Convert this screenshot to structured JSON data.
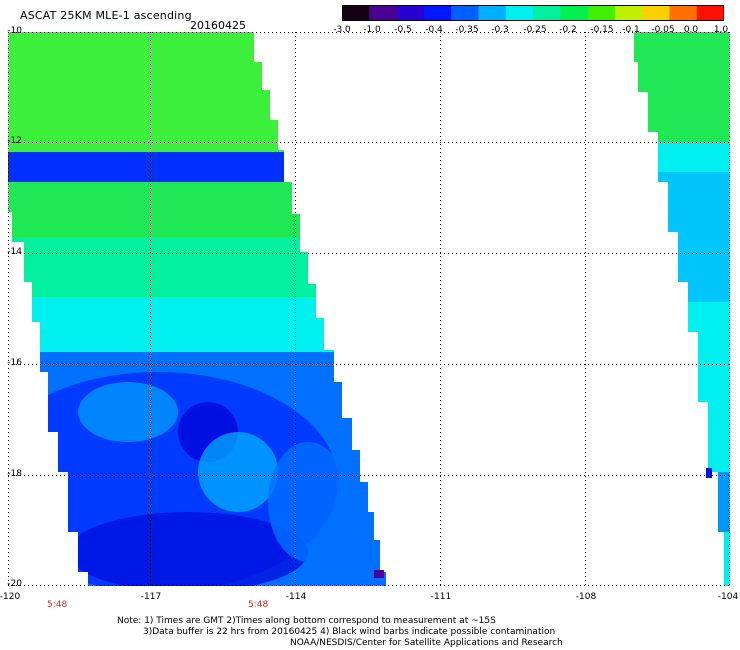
{
  "header": {
    "title": "ASCAT 25KM MLE-1 ascending",
    "date": "20160425"
  },
  "colorbar": {
    "labels": [
      "-3.0",
      "-1.0",
      "-0.5",
      "-0.4",
      "-0.35",
      "-0.3",
      "-0.25",
      "-0.2",
      "-0.15",
      "-0.1",
      "-0.05",
      "0.0",
      "1.0"
    ],
    "colors": [
      "#140014",
      "#4a0090",
      "#2a00d0",
      "#0018ff",
      "#0060ff",
      "#00b0ff",
      "#00f0f0",
      "#00f0a0",
      "#00f050",
      "#40f000",
      "#c0f000",
      "#ffd000",
      "#ff7000",
      "#ff1000"
    ]
  },
  "axes": {
    "y_labels": [
      "-10",
      "-12",
      "-14",
      "-16",
      "-18",
      "-20"
    ],
    "x_labels": [
      "-120",
      "-117",
      "-114",
      "-111",
      "-108",
      "-104"
    ]
  },
  "times": [
    "5:48",
    "5:48"
  ],
  "notes": [
    "Note: 1) Times are GMT 2)Times along bottom correspond to measurement at ~15S",
    "3)Data buffer is 22 hrs from 20160425 4) Black wind barbs indicate possible contamination",
    "NOAA/NESDIS/Center for Satellite Applications and Research"
  ],
  "map_colors": {
    "light_green": "#3cf03c",
    "green": "#20e854",
    "teal_green": "#00f0a0",
    "cyan": "#00f0f0",
    "light_blue": "#00b8ff",
    "mid_blue": "#0070ff",
    "blue": "#0030ff",
    "deep_blue": "#0010e0",
    "purple": "#4a00a0"
  }
}
